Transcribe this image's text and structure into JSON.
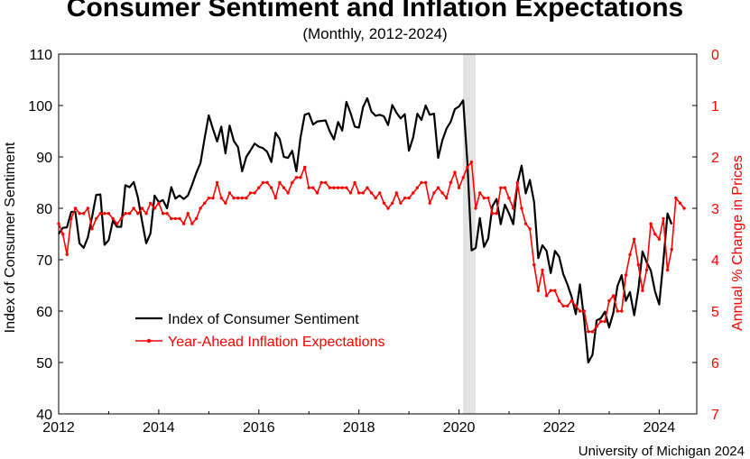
{
  "chart_data": {
    "type": "line",
    "title": "Consumer Sentiment and Inflation Expectations",
    "subtitle": "(Monthly, 2012-2024)",
    "source": "University of Michigan 2024",
    "ylabel_left": "Index of Consumer Sentiment",
    "ylabel_right": "Annual % Change in Prices",
    "ylim_left": [
      40,
      110
    ],
    "ylim_right_inverted": [
      0,
      7
    ],
    "left_ticks": [
      "40",
      "50",
      "60",
      "70",
      "80",
      "90",
      "100",
      "110"
    ],
    "right_ticks": [
      "0",
      "1",
      "2",
      "3",
      "4",
      "5",
      "6",
      "7"
    ],
    "x_ticks": [
      "2012",
      "2014",
      "2016",
      "2018",
      "2020",
      "2022",
      "2024"
    ],
    "xlim": [
      2012,
      2024.75
    ],
    "recession_band": [
      2020.08,
      2020.33
    ],
    "colors": {
      "sentiment": "#000000",
      "inflation": "#ff0000",
      "recession": "#e3e3e3"
    },
    "series": [
      {
        "name": "Index of Consumer Sentiment",
        "axis": "left",
        "start": 2012.0,
        "step": 0.08333,
        "values": [
          75,
          76.2,
          76.3,
          79.3,
          79.3,
          73.2,
          72.3,
          74.3,
          78.3,
          82.6,
          82.7,
          72.9,
          73.8,
          77.6,
          76.4,
          76.4,
          84.5,
          84.1,
          85.1,
          82.1,
          77.5,
          73.2,
          75.1,
          82.5,
          81.2,
          81.6,
          80,
          84.1,
          81.9,
          82.5,
          81.8,
          82.5,
          84.6,
          86.9,
          88.8,
          93.6,
          98.1,
          95.4,
          93,
          95.9,
          90.7,
          96.1,
          93.1,
          91.9,
          87.2,
          90,
          91.3,
          92.6,
          92,
          91.7,
          91,
          89,
          94.7,
          93.5,
          90,
          89.8,
          91.2,
          87.2,
          93.8,
          98.2,
          98.5,
          96.3,
          96.9,
          97,
          97.1,
          95,
          93.4,
          96.8,
          95.1,
          100.7,
          98.5,
          95.9,
          95.7,
          99.7,
          101.4,
          98.8,
          98,
          98.2,
          97.9,
          96.2,
          100.1,
          98.6,
          97.5,
          98.3,
          91.2,
          93.8,
          98.4,
          97.2,
          100,
          98.2,
          98.4,
          89.8,
          93.2,
          95.5,
          96.8,
          99.3,
          99.8,
          101,
          89.1,
          71.8,
          72.3,
          78.1,
          72.5,
          74.1,
          80.4,
          81.8,
          76.9,
          80.7,
          79,
          76.9,
          84.9,
          88.3,
          82.9,
          85.5,
          81.2,
          70.3,
          72.8,
          71.7,
          67.4,
          71.7,
          70.6,
          67.2,
          65.2,
          62.8,
          59.4,
          65.2,
          58.4,
          50,
          51.5,
          58.2,
          58.6,
          59.9,
          56.8,
          59.7,
          64.9,
          67,
          62,
          63.7,
          59.2,
          64.2,
          71.6,
          69.5,
          67.9,
          63.8,
          61.3,
          69.7,
          79,
          76.9
        ]
      },
      {
        "name": "Year-Ahead Inflation Expectations",
        "axis": "right",
        "start": 2012.0,
        "step": 0.08333,
        "values": [
          3.3,
          3.5,
          3.9,
          3.2,
          3,
          3.1,
          3.1,
          3.0,
          3.4,
          3.2,
          3.1,
          3.1,
          3.1,
          3.2,
          3.3,
          3.2,
          3.1,
          3.1,
          3.0,
          3.1,
          3.0,
          3.1,
          2.9,
          3.0,
          2.9,
          3.1,
          3.1,
          3.2,
          3.2,
          3.2,
          3.3,
          3.1,
          3.3,
          3.2,
          3.0,
          2.9,
          2.8,
          2.8,
          2.5,
          2.8,
          2.9,
          2.7,
          2.8,
          2.8,
          2.8,
          2.8,
          2.7,
          2.7,
          2.6,
          2.5,
          2.5,
          2.6,
          2.8,
          2.5,
          2.6,
          2.7,
          2.5,
          2.4,
          2.4,
          2.2,
          2.6,
          2.6,
          2.7,
          2.5,
          2.5,
          2.6,
          2.6,
          2.6,
          2.6,
          2.6,
          2.7,
          2.5,
          2.7,
          2.7,
          2.6,
          2.7,
          2.8,
          2.7,
          2.9,
          3.0,
          2.9,
          2.7,
          2.9,
          2.8,
          2.8,
          2.7,
          2.6,
          2.5,
          2.5,
          2.9,
          2.7,
          2.6,
          2.7,
          2.8,
          2.5,
          2.3,
          2.6,
          2.4,
          2.2,
          2.1,
          3.0,
          2.7,
          2.8,
          2.8,
          3.1,
          3.1,
          2.6,
          2.6,
          2.8,
          3.0,
          2.5,
          3.0,
          3.3,
          3.4,
          4.1,
          4.6,
          4.2,
          4.7,
          4.6,
          4.6,
          4.8,
          4.9,
          4.9,
          4.8,
          4.9,
          5.0,
          5.0,
          5.4,
          5.4,
          5.3,
          5.2,
          5.2,
          4.8,
          4.7,
          5.0,
          5.0,
          4.3,
          3.9,
          3.6,
          4.1,
          4.6,
          4.2,
          3.3,
          3.5,
          3.6,
          3.2,
          4.2,
          3.8,
          2.8,
          2.9,
          3.0
        ]
      }
    ]
  }
}
